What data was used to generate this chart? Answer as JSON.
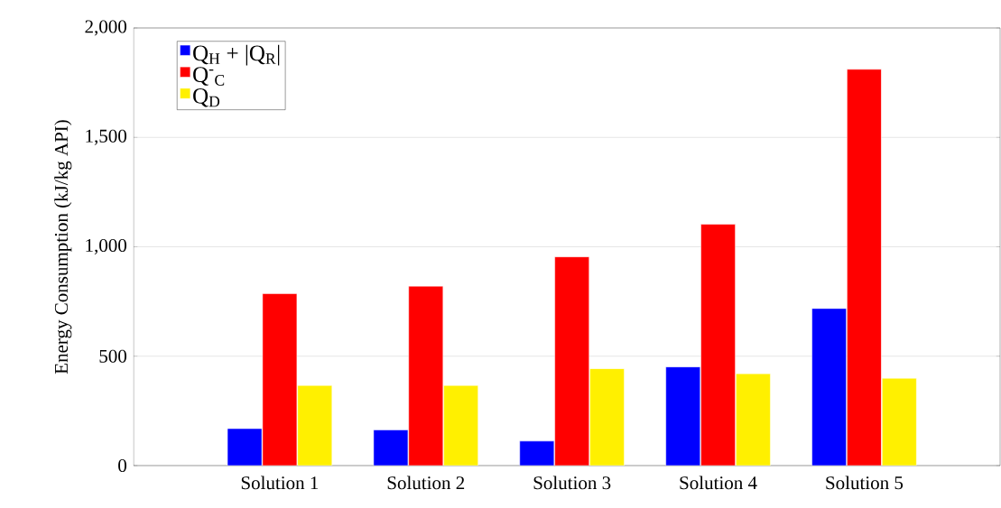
{
  "chart_data": {
    "type": "bar",
    "ylabel": "Energy Consumption (kJ/kg API)",
    "categories": [
      "Solution 1",
      "Solution 2",
      "Solution 3",
      "Solution 4",
      "Solution 5"
    ],
    "series": [
      {
        "name": "Q$_{H}$ + |Q$_{R}$|",
        "color": "#0000ff",
        "values": [
          169,
          163,
          112,
          451,
          718
        ]
      },
      {
        "name": "Q$^{-}$$_{C}$",
        "color": "#ff0000",
        "values": [
          786,
          820,
          954,
          1103,
          1811
        ]
      },
      {
        "name": "Q$_{D}$",
        "color": "#fff000",
        "values": [
          366,
          366,
          443,
          420,
          399
        ]
      }
    ],
    "ylim": [
      0,
      2000
    ],
    "yticks": [
      0,
      500,
      {
        "value": 1000,
        "label": "1,000"
      },
      {
        "value": 1500,
        "label": "1,500"
      },
      {
        "value": 2000,
        "label": "2,000"
      }
    ],
    "grid": "y",
    "legend": "top left"
  }
}
